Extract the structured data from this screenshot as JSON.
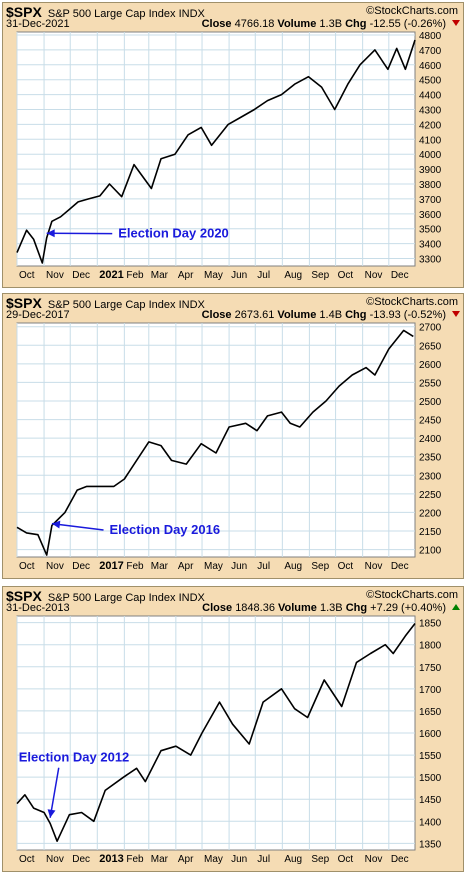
{
  "panels": [
    {
      "symbol": "$SPX",
      "name": "S&P 500 Large Cap Index",
      "exchange": "INDX",
      "watermark": "©StockCharts.com",
      "date": "31-Dec-2021",
      "close_label": "Close",
      "close": "4766.18",
      "volume_label": "Volume",
      "volume": "1.3B",
      "chg_label": "Chg",
      "chg": "-12.55 (-0.26%)",
      "direction": "down",
      "annotation": "Election Day 2020"
    },
    {
      "symbol": "$SPX",
      "name": "S&P 500 Large Cap Index",
      "exchange": "INDX",
      "watermark": "©StockCharts.com",
      "date": "29-Dec-2017",
      "close_label": "Close",
      "close": "2673.61",
      "volume_label": "Volume",
      "volume": "1.4B",
      "chg_label": "Chg",
      "chg": "-13.93 (-0.52%)",
      "direction": "down",
      "annotation": "Election Day 2016"
    },
    {
      "symbol": "$SPX",
      "name": "S&P 500 Large Cap Index",
      "exchange": "INDX",
      "watermark": "©StockCharts.com",
      "date": "31-Dec-2013",
      "close_label": "Close",
      "close": "1848.36",
      "volume_label": "Volume",
      "volume": "1.3B",
      "chg_label": "Chg",
      "chg": "+7.29 (+0.40%)",
      "direction": "up",
      "annotation": "Election Day 2012"
    }
  ],
  "colors": {
    "panel_bg": "#f5dcb4",
    "plot_bg": "#ffffff",
    "grid": "#c8dde8",
    "price_line": "#000000",
    "annotation": "#1a1adc",
    "down": "#c00000",
    "up": "#008000"
  },
  "chart_data": [
    {
      "type": "line",
      "series": [
        {
          "x": [
            "2020-10-01",
            "2020-10-12",
            "2020-10-20",
            "2020-10-30",
            "2020-11-04",
            "2020-11-10",
            "2020-11-20",
            "2020-11-30",
            "2020-12-10",
            "2020-12-22",
            "2021-01-04",
            "2021-01-15",
            "2021-01-29",
            "2021-02-12",
            "2021-03-04",
            "2021-03-15",
            "2021-03-31",
            "2021-04-15",
            "2021-04-30",
            "2021-05-12",
            "2021-05-31",
            "2021-06-15",
            "2021-06-30",
            "2021-07-15",
            "2021-07-31",
            "2021-08-15",
            "2021-08-31",
            "2021-09-15",
            "2021-09-30",
            "2021-10-15",
            "2021-10-29",
            "2021-11-15",
            "2021-11-30",
            "2021-12-10",
            "2021-12-20",
            "2021-12-31"
          ],
          "y": [
            3340,
            3490,
            3430,
            3270,
            3440,
            3550,
            3580,
            3630,
            3680,
            3700,
            3720,
            3800,
            3715,
            3930,
            3770,
            3970,
            4000,
            4130,
            4180,
            4060,
            4200,
            4250,
            4300,
            4360,
            4400,
            4470,
            4520,
            4450,
            4300,
            4470,
            4600,
            4700,
            4570,
            4710,
            4570,
            4766
          ]
        }
      ],
      "ylim": [
        3250,
        4820
      ],
      "yticks": [
        3300,
        3400,
        3500,
        3600,
        3700,
        3800,
        3900,
        4000,
        4100,
        4200,
        4300,
        4400,
        4500,
        4600,
        4700,
        4800
      ],
      "xticks": [
        {
          "label": "Oct",
          "date": "2020-10-01",
          "bold": false
        },
        {
          "label": "Nov",
          "date": "2020-11-01",
          "bold": false
        },
        {
          "label": "Dec",
          "date": "2020-12-01",
          "bold": false
        },
        {
          "label": "2021",
          "date": "2021-01-01",
          "bold": true
        },
        {
          "label": "Feb",
          "date": "2021-02-01",
          "bold": false
        },
        {
          "label": "Mar",
          "date": "2021-03-01",
          "bold": false
        },
        {
          "label": "Apr",
          "date": "2021-04-01",
          "bold": false
        },
        {
          "label": "May",
          "date": "2021-05-01",
          "bold": false
        },
        {
          "label": "Jun",
          "date": "2021-06-01",
          "bold": false
        },
        {
          "label": "Jul",
          "date": "2021-07-01",
          "bold": false
        },
        {
          "label": "Aug",
          "date": "2021-08-01",
          "bold": false
        },
        {
          "label": "Sep",
          "date": "2021-09-01",
          "bold": false
        },
        {
          "label": "Oct",
          "date": "2021-10-01",
          "bold": false
        },
        {
          "label": "Nov",
          "date": "2021-11-01",
          "bold": false
        },
        {
          "label": "Dec",
          "date": "2021-12-01",
          "bold": false
        }
      ],
      "xlim": [
        "2020-10-01",
        "2021-12-31"
      ],
      "annotation": {
        "text": "Election Day 2020",
        "arrow_to": {
          "x": "2020-11-04",
          "y": 3470
        },
        "text_at": {
          "x": "2021-01-25",
          "y": 3440
        }
      }
    },
    {
      "type": "line",
      "series": [
        {
          "x": [
            "2016-10-01",
            "2016-10-12",
            "2016-10-25",
            "2016-11-04",
            "2016-11-10",
            "2016-11-25",
            "2016-12-09",
            "2016-12-20",
            "2017-01-05",
            "2017-01-20",
            "2017-02-01",
            "2017-02-15",
            "2017-03-01",
            "2017-03-15",
            "2017-03-27",
            "2017-04-13",
            "2017-04-30",
            "2017-05-17",
            "2017-06-01",
            "2017-06-20",
            "2017-07-03",
            "2017-07-15",
            "2017-07-31",
            "2017-08-10",
            "2017-08-21",
            "2017-09-05",
            "2017-09-20",
            "2017-10-05",
            "2017-10-20",
            "2017-11-05",
            "2017-11-15",
            "2017-12-01",
            "2017-12-18",
            "2017-12-29"
          ],
          "y": [
            2160,
            2145,
            2140,
            2085,
            2165,
            2200,
            2260,
            2270,
            2270,
            2270,
            2290,
            2340,
            2390,
            2380,
            2340,
            2330,
            2385,
            2360,
            2430,
            2440,
            2420,
            2460,
            2470,
            2440,
            2430,
            2470,
            2500,
            2540,
            2570,
            2590,
            2570,
            2640,
            2690,
            2674
          ]
        }
      ],
      "ylim": [
        2080,
        2710
      ],
      "yticks": [
        2100,
        2150,
        2200,
        2250,
        2300,
        2350,
        2400,
        2450,
        2500,
        2550,
        2600,
        2650,
        2700
      ],
      "xticks": [
        {
          "label": "Oct",
          "date": "2016-10-01",
          "bold": false
        },
        {
          "label": "Nov",
          "date": "2016-11-01",
          "bold": false
        },
        {
          "label": "Dec",
          "date": "2016-12-01",
          "bold": false
        },
        {
          "label": "2017",
          "date": "2017-01-01",
          "bold": true
        },
        {
          "label": "Feb",
          "date": "2017-02-01",
          "bold": false
        },
        {
          "label": "Mar",
          "date": "2017-03-01",
          "bold": false
        },
        {
          "label": "Apr",
          "date": "2017-04-01",
          "bold": false
        },
        {
          "label": "May",
          "date": "2017-05-01",
          "bold": false
        },
        {
          "label": "Jun",
          "date": "2017-06-01",
          "bold": false
        },
        {
          "label": "Jul",
          "date": "2017-07-01",
          "bold": false
        },
        {
          "label": "Aug",
          "date": "2017-08-01",
          "bold": false
        },
        {
          "label": "Sep",
          "date": "2017-09-01",
          "bold": false
        },
        {
          "label": "Oct",
          "date": "2017-10-01",
          "bold": false
        },
        {
          "label": "Nov",
          "date": "2017-11-01",
          "bold": false
        },
        {
          "label": "Dec",
          "date": "2017-12-01",
          "bold": false
        }
      ],
      "xlim": [
        "2016-10-01",
        "2017-12-31"
      ],
      "annotation": {
        "text": "Election Day 2016",
        "arrow_to": {
          "x": "2016-11-10",
          "y": 2170
        },
        "text_at": {
          "x": "2017-01-15",
          "y": 2142
        }
      }
    },
    {
      "type": "line",
      "series": [
        {
          "x": [
            "2012-10-01",
            "2012-10-10",
            "2012-10-20",
            "2012-11-01",
            "2012-11-08",
            "2012-11-16",
            "2012-11-30",
            "2012-12-14",
            "2012-12-28",
            "2013-01-10",
            "2013-01-31",
            "2013-02-15",
            "2013-02-25",
            "2013-03-15",
            "2013-04-01",
            "2013-04-18",
            "2013-05-01",
            "2013-05-21",
            "2013-06-05",
            "2013-06-24",
            "2013-07-10",
            "2013-07-31",
            "2013-08-15",
            "2013-08-30",
            "2013-09-18",
            "2013-10-08",
            "2013-10-25",
            "2013-11-10",
            "2013-11-27",
            "2013-12-06",
            "2013-12-20",
            "2013-12-31"
          ],
          "y": [
            1440,
            1460,
            1430,
            1420,
            1395,
            1355,
            1415,
            1420,
            1400,
            1470,
            1500,
            1520,
            1490,
            1560,
            1570,
            1550,
            1600,
            1670,
            1620,
            1575,
            1670,
            1700,
            1655,
            1635,
            1720,
            1660,
            1760,
            1780,
            1800,
            1780,
            1820,
            1848
          ]
        }
      ],
      "ylim": [
        1335,
        1865
      ],
      "yticks": [
        1350,
        1400,
        1450,
        1500,
        1550,
        1600,
        1650,
        1700,
        1750,
        1800,
        1850
      ],
      "xticks": [
        {
          "label": "Oct",
          "date": "2012-10-01",
          "bold": false
        },
        {
          "label": "Nov",
          "date": "2012-11-01",
          "bold": false
        },
        {
          "label": "Dec",
          "date": "2012-12-01",
          "bold": false
        },
        {
          "label": "2013",
          "date": "2013-01-01",
          "bold": true
        },
        {
          "label": "Feb",
          "date": "2013-02-01",
          "bold": false
        },
        {
          "label": "Mar",
          "date": "2013-03-01",
          "bold": false
        },
        {
          "label": "Apr",
          "date": "2013-04-01",
          "bold": false
        },
        {
          "label": "May",
          "date": "2013-05-01",
          "bold": false
        },
        {
          "label": "Jun",
          "date": "2013-06-01",
          "bold": false
        },
        {
          "label": "Jul",
          "date": "2013-07-01",
          "bold": false
        },
        {
          "label": "Aug",
          "date": "2013-08-01",
          "bold": false
        },
        {
          "label": "Sep",
          "date": "2013-09-01",
          "bold": false
        },
        {
          "label": "Oct",
          "date": "2013-10-01",
          "bold": false
        },
        {
          "label": "Nov",
          "date": "2013-11-01",
          "bold": false
        },
        {
          "label": "Dec",
          "date": "2013-12-01",
          "bold": false
        }
      ],
      "xlim": [
        "2012-10-01",
        "2013-12-31"
      ],
      "annotation": {
        "text": "Election Day 2012",
        "arrow_to": {
          "x": "2012-11-08",
          "y": 1408
        },
        "text_at": {
          "x": "2012-10-03",
          "y": 1535
        }
      }
    }
  ]
}
